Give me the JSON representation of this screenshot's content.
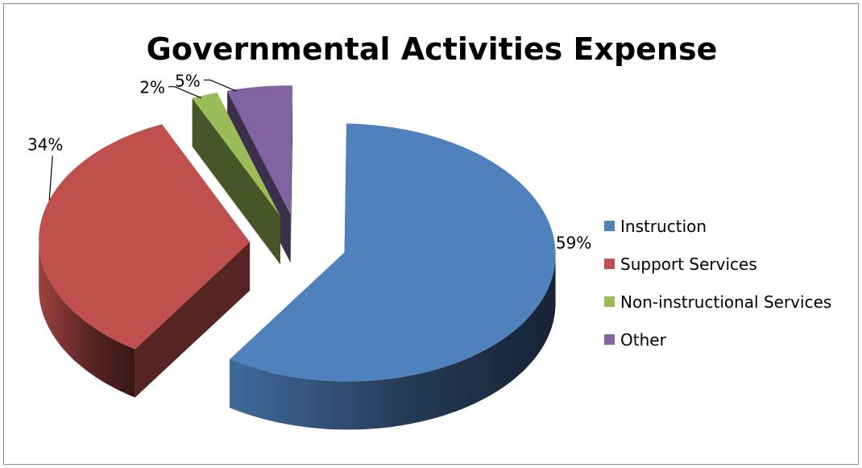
{
  "chart_data": {
    "type": "pie",
    "title": "Governmental Activities Expense",
    "categories": [
      "Instruction",
      "Support Services",
      "Non-instructional Services",
      "Other"
    ],
    "values": [
      59,
      34,
      2,
      5
    ],
    "value_labels": [
      "59%",
      "34%",
      "2%",
      "5%"
    ],
    "colors": [
      "#4f81bd",
      "#c0504d",
      "#9bbb59",
      "#8064a2"
    ],
    "exploded": true,
    "three_d": true,
    "legend_position": "right"
  }
}
